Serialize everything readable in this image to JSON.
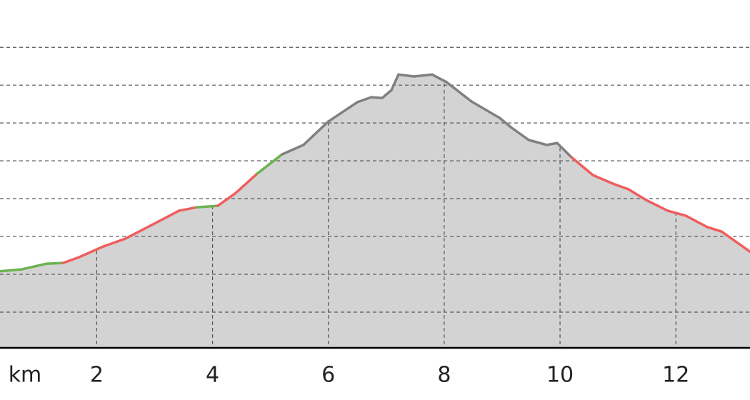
{
  "chart_data": {
    "type": "area",
    "xlabel": "km",
    "x": [
      0.33,
      0.7,
      1.13,
      1.42,
      1.69,
      2.12,
      2.49,
      2.92,
      3.42,
      3.72,
      4.09,
      4.4,
      4.77,
      5.2,
      5.57,
      6.0,
      6.5,
      6.74,
      6.93,
      7.09,
      7.21,
      7.48,
      7.79,
      8.04,
      8.47,
      8.96,
      9.15,
      9.46,
      9.77,
      9.95,
      10.2,
      10.57,
      10.94,
      11.18,
      11.49,
      11.86,
      12.17,
      12.54,
      12.79,
      13.03,
      13.28
    ],
    "values": [
      2.08,
      2.13,
      2.28,
      2.3,
      2.45,
      2.74,
      2.94,
      3.28,
      3.68,
      3.77,
      3.81,
      4.15,
      4.66,
      5.17,
      5.42,
      6.04,
      6.55,
      6.68,
      6.66,
      6.87,
      7.28,
      7.23,
      7.28,
      7.08,
      6.57,
      6.13,
      5.89,
      5.55,
      5.42,
      5.47,
      5.09,
      4.62,
      4.38,
      4.25,
      3.96,
      3.68,
      3.55,
      3.25,
      3.13,
      2.87,
      2.6
    ],
    "segment_colors": [
      "#6cb24f",
      "#6cb24f",
      "#6cb24f",
      "#ee5e5e",
      "#ee5e5e",
      "#ee5e5e",
      "#ee5e5e",
      "#ee5e5e",
      "#ee5e5e",
      "#6cb24f",
      "#ee5e5e",
      "#ee5e5e",
      "#6cb24f",
      "#808080",
      "#808080",
      "#808080",
      "#808080",
      "#808080",
      "#808080",
      "#808080",
      "#808080",
      "#808080",
      "#808080",
      "#808080",
      "#808080",
      "#808080",
      "#808080",
      "#808080",
      "#808080",
      "#808080",
      "#ee5e5e",
      "#ee5e5e",
      "#ee5e5e",
      "#ee5e5e",
      "#ee5e5e",
      "#ee5e5e",
      "#ee5e5e",
      "#ee5e5e",
      "#ee5e5e",
      "#ee5e5e"
    ],
    "fill": "#d3d3d3",
    "xlim": [
      0.33,
      13.28
    ],
    "ylim": [
      0,
      9.25
    ],
    "xticks": [
      2,
      4,
      6,
      8,
      10,
      12
    ],
    "yticks": [
      1,
      2,
      3,
      4,
      5,
      6,
      7,
      8
    ],
    "grid": true
  }
}
